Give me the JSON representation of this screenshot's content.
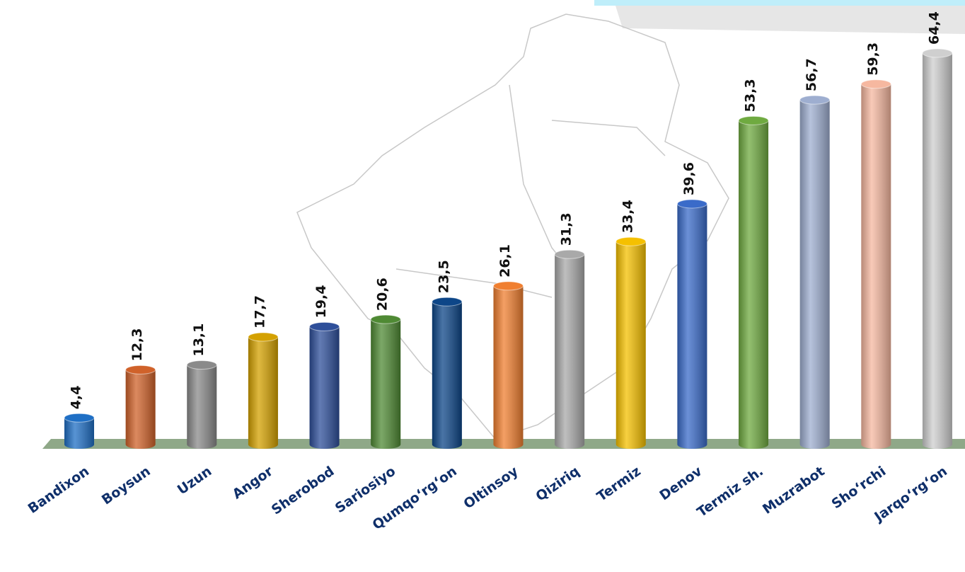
{
  "chart_data": {
    "type": "bar",
    "categories": [
      "Bandixon",
      "Boysun",
      "Uzun",
      "Angor",
      "Sherobod",
      "Sariosiyo",
      "Qumqo‘rg‘on",
      "Oltinsoy",
      "Qiziriq",
      "Termiz",
      "Denov",
      "Termiz sh.",
      "Muzrabot",
      "Sho‘rchi",
      "Jarqo‘rg‘on"
    ],
    "values": [
      4.4,
      12.3,
      13.1,
      17.7,
      19.4,
      20.6,
      23.5,
      26.1,
      31.3,
      33.4,
      39.6,
      53.3,
      56.7,
      59.3,
      64.4
    ],
    "value_labels": [
      "4,4",
      "12,3",
      "13,1",
      "17,7",
      "19,4",
      "20,6",
      "23,5",
      "26,1",
      "31,3",
      "33,4",
      "39,6",
      "53,3",
      "56,7",
      "59,3",
      "64,4"
    ],
    "colors": [
      "#1f6fc5",
      "#d0622a",
      "#8a8a8a",
      "#d4a100",
      "#2e4f9a",
      "#4f8a34",
      "#0d4688",
      "#f07f30",
      "#a9a9a9",
      "#f5c000",
      "#3a6bc9",
      "#6faa40",
      "#9eaed0",
      "#f6b8a0",
      "#cfcfcf"
    ]
  }
}
